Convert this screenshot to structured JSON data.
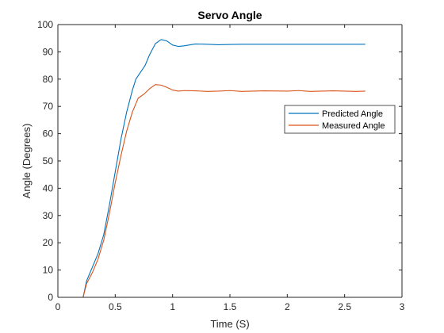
{
  "chart_data": {
    "type": "line",
    "title": "Servo Angle",
    "xlabel": "Time (S)",
    "ylabel": "Angle (Degrees)",
    "xlim": [
      0,
      3
    ],
    "ylim": [
      0,
      100
    ],
    "xticks": [
      0,
      0.5,
      1,
      1.5,
      2,
      2.5,
      3
    ],
    "xtick_labels": [
      "0",
      "0.5",
      "1",
      "1.5",
      "2",
      "2.5",
      "3"
    ],
    "yticks": [
      0,
      10,
      20,
      30,
      40,
      50,
      60,
      70,
      80,
      90,
      100
    ],
    "ytick_labels": [
      "0",
      "10",
      "20",
      "30",
      "40",
      "50",
      "60",
      "70",
      "80",
      "90",
      "100"
    ],
    "grid": false,
    "legend_position": "right",
    "series": [
      {
        "name": "Predicted Angle",
        "color": "#0072BD",
        "points": [
          [
            0,
            0
          ],
          [
            0.22,
            0
          ],
          [
            0.25,
            6
          ],
          [
            0.3,
            11
          ],
          [
            0.35,
            16
          ],
          [
            0.4,
            23
          ],
          [
            0.45,
            34
          ],
          [
            0.5,
            46
          ],
          [
            0.55,
            58
          ],
          [
            0.6,
            68
          ],
          [
            0.65,
            76
          ],
          [
            0.68,
            80
          ],
          [
            0.72,
            82.5
          ],
          [
            0.76,
            85
          ],
          [
            0.8,
            89
          ],
          [
            0.85,
            93
          ],
          [
            0.9,
            94.5
          ],
          [
            0.95,
            94
          ],
          [
            1.0,
            92.5
          ],
          [
            1.05,
            92
          ],
          [
            1.1,
            92.2
          ],
          [
            1.2,
            92.9
          ],
          [
            1.3,
            92.8
          ],
          [
            1.4,
            92.6
          ],
          [
            1.5,
            92.7
          ],
          [
            1.6,
            92.8
          ],
          [
            1.8,
            92.8
          ],
          [
            2.0,
            92.8
          ],
          [
            2.2,
            92.8
          ],
          [
            2.4,
            92.8
          ],
          [
            2.6,
            92.8
          ],
          [
            2.68,
            92.8
          ]
        ]
      },
      {
        "name": "Measured Angle",
        "color": "#D95319",
        "points": [
          [
            0,
            0
          ],
          [
            0.22,
            0
          ],
          [
            0.25,
            5
          ],
          [
            0.3,
            9
          ],
          [
            0.35,
            14
          ],
          [
            0.4,
            21
          ],
          [
            0.45,
            31
          ],
          [
            0.5,
            42
          ],
          [
            0.55,
            52
          ],
          [
            0.6,
            61
          ],
          [
            0.65,
            68
          ],
          [
            0.7,
            73
          ],
          [
            0.75,
            74.5
          ],
          [
            0.8,
            76.5
          ],
          [
            0.85,
            78
          ],
          [
            0.9,
            77.8
          ],
          [
            0.95,
            77
          ],
          [
            1.0,
            76
          ],
          [
            1.05,
            75.6
          ],
          [
            1.1,
            75.8
          ],
          [
            1.2,
            75.7
          ],
          [
            1.3,
            75.5
          ],
          [
            1.4,
            75.6
          ],
          [
            1.5,
            75.8
          ],
          [
            1.6,
            75.5
          ],
          [
            1.8,
            75.7
          ],
          [
            2.0,
            75.6
          ],
          [
            2.1,
            75.8
          ],
          [
            2.2,
            75.5
          ],
          [
            2.4,
            75.7
          ],
          [
            2.5,
            75.6
          ],
          [
            2.6,
            75.5
          ],
          [
            2.68,
            75.6
          ]
        ]
      }
    ]
  }
}
